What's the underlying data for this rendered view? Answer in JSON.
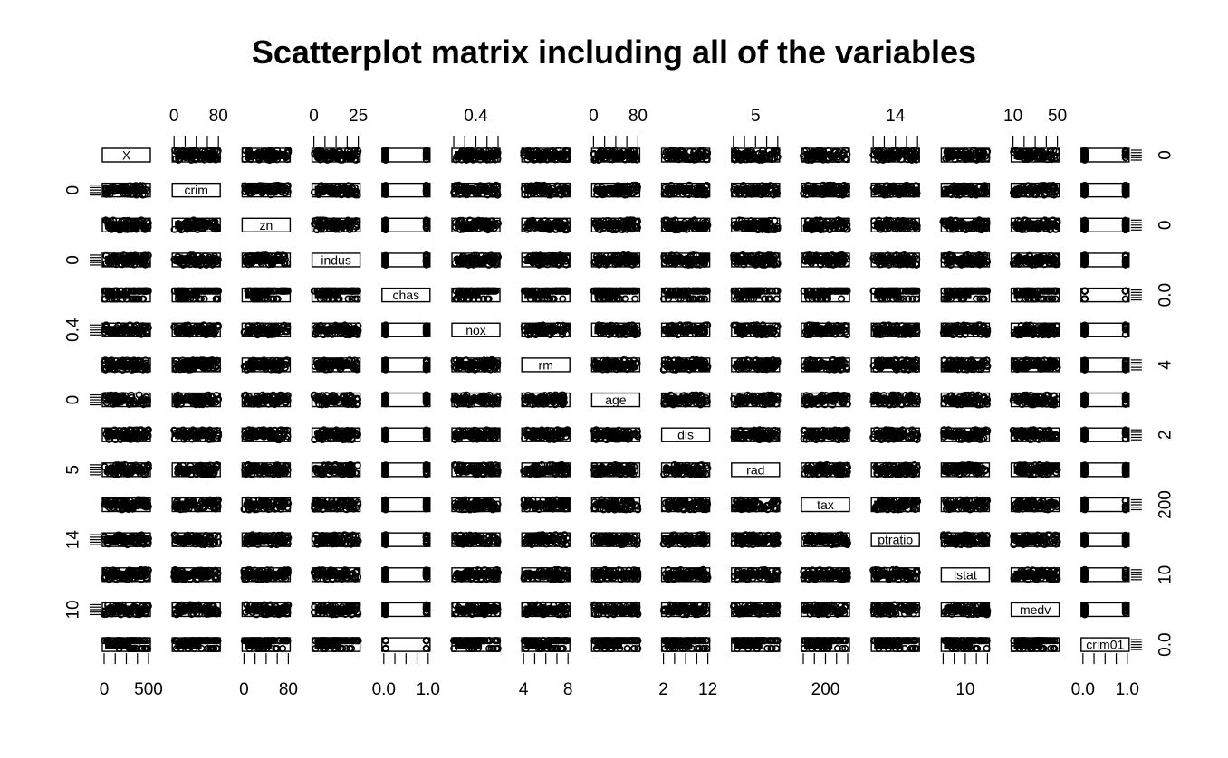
{
  "chart_data": {
    "type": "scatter",
    "subtype": "scatterplot-matrix",
    "title": "Scatterplot matrix including all of the variables",
    "variables": [
      "X",
      "crim",
      "zn",
      "indus",
      "chas",
      "nox",
      "rm",
      "age",
      "dis",
      "rad",
      "tax",
      "ptratio",
      "lstat",
      "medv",
      "crim01"
    ],
    "axis_ticks": {
      "top": [
        {
          "var": "crim",
          "labels": [
            "0",
            "80"
          ]
        },
        {
          "var": "indus",
          "labels": [
            "0",
            "25"
          ]
        },
        {
          "var": "nox",
          "labels": [
            "0.4"
          ]
        },
        {
          "var": "age",
          "labels": [
            "0",
            "80"
          ]
        },
        {
          "var": "rad",
          "labels": [
            "5"
          ]
        },
        {
          "var": "ptratio",
          "labels": [
            "14"
          ]
        },
        {
          "var": "medv",
          "labels": [
            "10",
            "50"
          ]
        }
      ],
      "bottom": [
        {
          "var": "X",
          "labels": [
            "0",
            "500"
          ]
        },
        {
          "var": "zn",
          "labels": [
            "0",
            "80"
          ]
        },
        {
          "var": "chas",
          "labels": [
            "0.0",
            "1.0"
          ]
        },
        {
          "var": "rm",
          "labels": [
            "4",
            "8"
          ]
        },
        {
          "var": "dis",
          "labels": [
            "2",
            "12"
          ]
        },
        {
          "var": "tax",
          "labels": [
            "200"
          ]
        },
        {
          "var": "lstat",
          "labels": [
            "10"
          ]
        },
        {
          "var": "crim01",
          "labels": [
            "0.0",
            "1.0"
          ]
        }
      ],
      "left": [
        {
          "var": "crim",
          "labels": [
            "0"
          ]
        },
        {
          "var": "indus",
          "labels": [
            "0"
          ]
        },
        {
          "var": "nox",
          "labels": [
            "0.4"
          ]
        },
        {
          "var": "age",
          "labels": [
            "0"
          ]
        },
        {
          "var": "rad",
          "labels": [
            "5"
          ]
        },
        {
          "var": "ptratio",
          "labels": [
            "14"
          ]
        },
        {
          "var": "medv",
          "labels": [
            "10"
          ]
        }
      ],
      "right": [
        {
          "var": "X",
          "labels": [
            "0"
          ]
        },
        {
          "var": "zn",
          "labels": [
            "0"
          ]
        },
        {
          "var": "chas",
          "labels": [
            "0.0"
          ]
        },
        {
          "var": "rm",
          "labels": [
            "4"
          ]
        },
        {
          "var": "dis",
          "labels": [
            "2"
          ]
        },
        {
          "var": "tax",
          "labels": [
            "200"
          ]
        },
        {
          "var": "lstat",
          "labels": [
            "10"
          ]
        },
        {
          "var": "crim01",
          "labels": [
            "0.0"
          ]
        }
      ]
    },
    "marker": "open-circle",
    "color": "#000000"
  }
}
